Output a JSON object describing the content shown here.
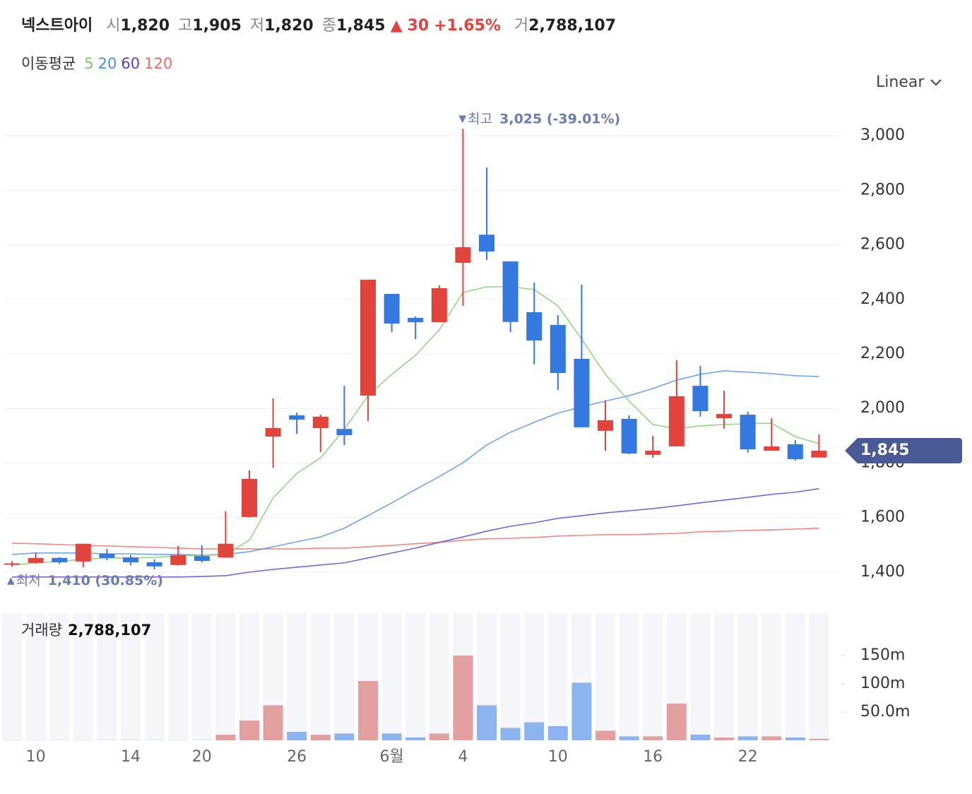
{
  "header": {
    "name": "넥스트아이",
    "fields": [
      {
        "label": "시",
        "value": "1,820"
      },
      {
        "label": "고",
        "value": "1,905"
      },
      {
        "label": "저",
        "value": "1,820"
      },
      {
        "label": "종",
        "value": "1,845"
      }
    ],
    "change_arrow": "▲",
    "change": "30",
    "change_pct": "+1.65%",
    "volume_label": "거",
    "volume": "2,788,107"
  },
  "scale": "Linear",
  "chart_data": [
    {
      "type": "candlestick",
      "legend_title": "이동평균",
      "categories": [
        null,
        "10",
        null,
        null,
        null,
        "14",
        null,
        null,
        "20",
        null,
        null,
        null,
        "26",
        null,
        null,
        null,
        "6월",
        null,
        null,
        "4",
        null,
        null,
        null,
        "10",
        null,
        null,
        null,
        "16",
        null,
        null,
        null,
        "22",
        null,
        null,
        null
      ],
      "open": [
        1428,
        1434,
        1452,
        1439,
        1467,
        1454,
        1436,
        1426,
        1459,
        1454,
        1602,
        1897,
        1975,
        1928,
        1925,
        2047,
        2420,
        2332,
        2316,
        2534,
        2637,
        2539,
        2353,
        2306,
        2182,
        1918,
        1962,
        1830,
        1861,
        2083,
        1964,
        1977,
        1845,
        1869,
        1820
      ],
      "high": [
        1440,
        1472,
        1455,
        1504,
        1485,
        1462,
        1447,
        1496,
        1498,
        1623,
        1773,
        2037,
        1985,
        1977,
        2083,
        2472,
        2420,
        2337,
        2451,
        3025,
        2883,
        2539,
        2462,
        2342,
        2454,
        2029,
        1975,
        1900,
        2177,
        2156,
        2065,
        1988,
        1964,
        1884,
        1905
      ],
      "low": [
        1420,
        1431,
        1430,
        1418,
        1444,
        1425,
        1410,
        1424,
        1436,
        1452,
        1600,
        1783,
        1907,
        1840,
        1866,
        1954,
        2280,
        2254,
        2316,
        2376,
        2544,
        2280,
        2161,
        2068,
        1931,
        1845,
        1832,
        1819,
        1861,
        1970,
        1926,
        1838,
        1845,
        1809,
        1820
      ],
      "close": [
        1432,
        1452,
        1436,
        1504,
        1452,
        1436,
        1421,
        1462,
        1441,
        1504,
        1742,
        1928,
        1959,
        1970,
        1902,
        2472,
        2311,
        2316,
        2441,
        2591,
        2575,
        2317,
        2249,
        2130,
        1931,
        1957,
        1835,
        1845,
        2045,
        1990,
        1980,
        1850,
        1861,
        1814,
        1845
      ],
      "up_color": "#e0443c",
      "down_color": "#3478e0",
      "series": [
        {
          "name": "5",
          "color": "#7ac96a",
          "values": [
            1426,
            1434,
            1439,
            1447,
            1452,
            1452,
            1454,
            1460,
            1462,
            1465,
            1517,
            1672,
            1762,
            1819,
            1923,
            2047,
            2125,
            2195,
            2288,
            2425,
            2446,
            2446,
            2436,
            2376,
            2254,
            2125,
            2027,
            1941,
            1926,
            1936,
            1941,
            1944,
            1946,
            1897,
            1871
          ]
        },
        {
          "name": "20",
          "color": "#4b8fe8",
          "values": [
            1465,
            1470,
            1470,
            1470,
            1467,
            1467,
            1465,
            1465,
            1462,
            1465,
            1475,
            1493,
            1511,
            1529,
            1561,
            1607,
            1654,
            1703,
            1750,
            1801,
            1866,
            1913,
            1949,
            1983,
            2006,
            2027,
            2047,
            2073,
            2104,
            2125,
            2138,
            2133,
            2128,
            2120,
            2117
          ]
        },
        {
          "name": "60",
          "color": "#5a3fc8",
          "values": [
            1382,
            1382,
            1382,
            1382,
            1382,
            1382,
            1382,
            1382,
            1384,
            1387,
            1400,
            1410,
            1418,
            1426,
            1434,
            1452,
            1470,
            1488,
            1509,
            1529,
            1550,
            1568,
            1581,
            1597,
            1607,
            1617,
            1625,
            1633,
            1643,
            1654,
            1664,
            1674,
            1685,
            1693,
            1706
          ]
        },
        {
          "name": "120",
          "color": "#e86a6a",
          "values": [
            1506,
            1504,
            1501,
            1498,
            1496,
            1493,
            1491,
            1488,
            1485,
            1485,
            1485,
            1485,
            1485,
            1488,
            1488,
            1493,
            1498,
            1504,
            1509,
            1517,
            1522,
            1524,
            1527,
            1532,
            1535,
            1537,
            1537,
            1540,
            1542,
            1548,
            1550,
            1553,
            1555,
            1558,
            1561
          ]
        }
      ],
      "ylim": [
        1322,
        3109
      ],
      "yticks": [
        {
          "value": 1400,
          "label": "1,400"
        },
        {
          "value": 1600,
          "label": "1,600"
        },
        {
          "value": 1800,
          "label": "1,800"
        },
        {
          "value": 2000,
          "label": "2,000"
        },
        {
          "value": 2200,
          "label": "2,200"
        },
        {
          "value": 2400,
          "label": "2,400"
        },
        {
          "value": 2600,
          "label": "2,600"
        },
        {
          "value": 2800,
          "label": "2,800"
        },
        {
          "value": 3000,
          "label": "3,000"
        }
      ],
      "grid": true,
      "annotations": [
        {
          "marker": "▼",
          "label": "최고",
          "text": "3,025 (-39.01%)"
        },
        {
          "marker": "▲",
          "label": "최저",
          "text": "1,410 (30.85%)"
        }
      ],
      "last_price": {
        "value": 1845,
        "label": "1,845"
      }
    },
    {
      "type": "bar",
      "title": "거래량",
      "current_label": "2,788,107",
      "up_color": "#e4a0a0",
      "down_color": "#8cb4f0",
      "values": [
        300000,
        300000,
        300000,
        300000,
        300000,
        300000,
        300000,
        300000,
        300000,
        10000000,
        35000000,
        62000000,
        15000000,
        10000000,
        12000000,
        105000000,
        12000000,
        5000000,
        12000000,
        150000000,
        62000000,
        22000000,
        32000000,
        25000000,
        102000000,
        17000000,
        7000000,
        7000000,
        65000000,
        10000000,
        5000000,
        7000000,
        7000000,
        5000000,
        2788107
      ],
      "ylim": [
        0,
        225000000
      ],
      "yticks": [
        {
          "value": 50000000,
          "label": "50.0m"
        },
        {
          "value": 100000000,
          "label": "100m"
        },
        {
          "value": 150000000,
          "label": "150m"
        }
      ]
    }
  ]
}
